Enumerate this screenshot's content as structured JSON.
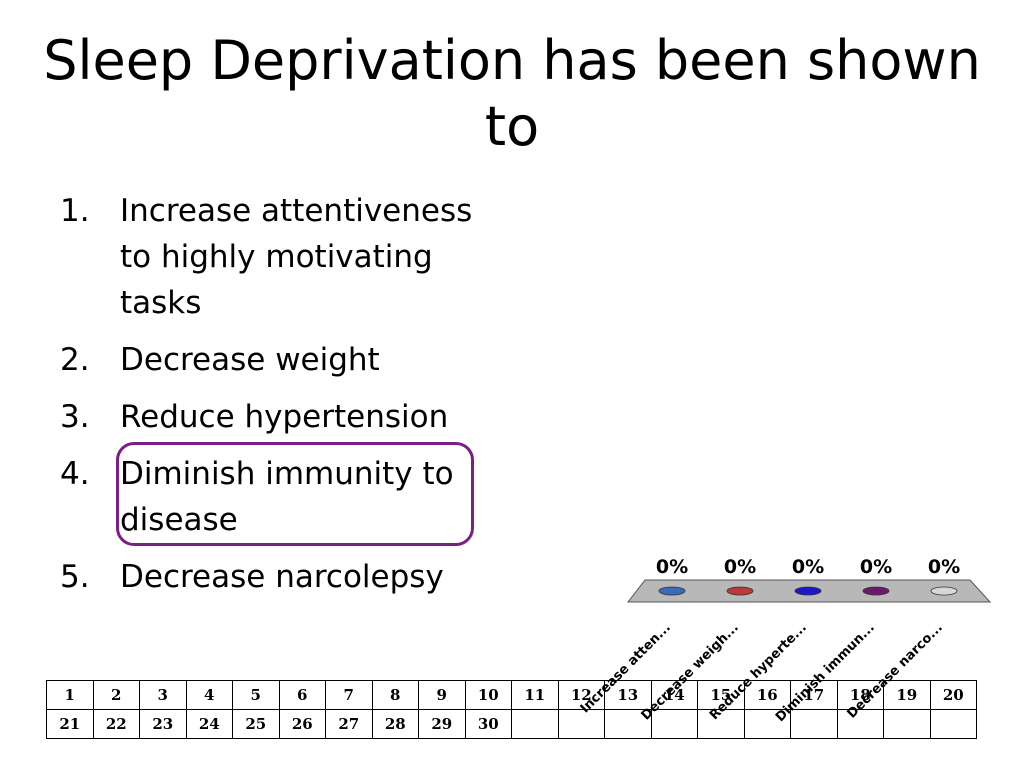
{
  "slide": {
    "title": "Sleep Deprivation has been shown to",
    "options": [
      {
        "number": "1.",
        "text": "Increase attentiveness to highly motivating tasks"
      },
      {
        "number": "2.",
        "text": "Decrease weight"
      },
      {
        "number": "3.",
        "text": "Reduce hypertension"
      },
      {
        "number": "4.",
        "text": "Diminish immunity to disease"
      },
      {
        "number": "5.",
        "text": "Decrease narcolepsy"
      }
    ],
    "highlighted_option": "4.",
    "highlight_color": "#7a1f86"
  },
  "chart_data": {
    "type": "bar",
    "categories": [
      "Increase atten...",
      "Decrease weigh...",
      "Reduce hyperte...",
      "Diminish immun...",
      "Decrease narco..."
    ],
    "values": [
      0,
      0,
      0,
      0,
      0
    ],
    "value_labels": [
      "0%",
      "0%",
      "0%",
      "0%",
      "0%"
    ],
    "colors": [
      "#3a6bb8",
      "#b83a3a",
      "#1a1ac8",
      "#6a1a6a",
      "#d8d8d8"
    ],
    "ylim": [
      0,
      100
    ]
  },
  "response_grid": {
    "rows": [
      [
        "1",
        "2",
        "3",
        "4",
        "5",
        "6",
        "7",
        "8",
        "9",
        "10",
        "11",
        "12",
        "13",
        "14",
        "15",
        "16",
        "17",
        "18",
        "19",
        "20"
      ],
      [
        "21",
        "22",
        "23",
        "24",
        "25",
        "26",
        "27",
        "28",
        "29",
        "30",
        "",
        "",
        "",
        "",
        "",
        "",
        "",
        "",
        "",
        ""
      ]
    ]
  }
}
